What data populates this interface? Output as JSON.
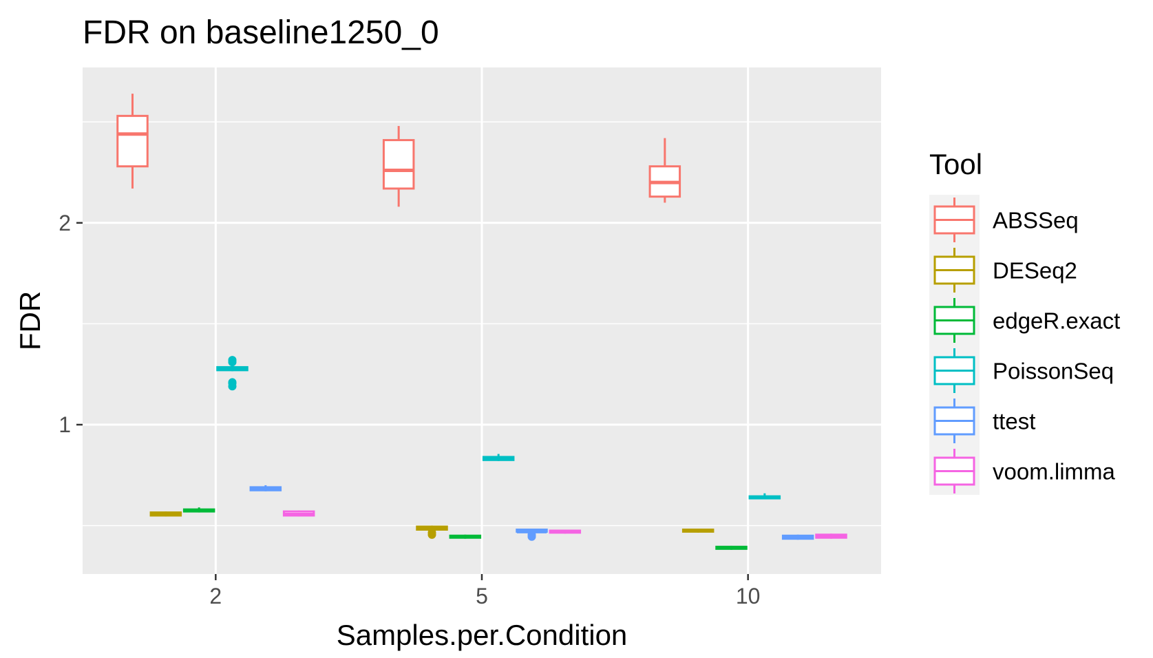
{
  "chart_data": {
    "type": "boxplot",
    "title": "FDR on baseline1250_0",
    "xlabel": "Samples.per.Condition",
    "ylabel": "FDR",
    "categories": [
      "2",
      "5",
      "10"
    ],
    "y_ticks": [
      1,
      2
    ],
    "y_tick_labels": [
      "1",
      "2"
    ],
    "ylim": [
      0.26,
      2.77
    ],
    "grid": true,
    "legend": {
      "title": "Tool",
      "position": "right"
    },
    "series": [
      {
        "name": "ABSSeq",
        "color": "#F8766D",
        "boxes": [
          {
            "min": 2.17,
            "q1": 2.28,
            "median": 2.44,
            "q3": 2.53,
            "max": 2.64,
            "outliers": []
          },
          {
            "min": 2.08,
            "q1": 2.17,
            "median": 2.26,
            "q3": 2.41,
            "max": 2.48,
            "outliers": []
          },
          {
            "min": 2.1,
            "q1": 2.13,
            "median": 2.2,
            "q3": 2.28,
            "max": 2.42,
            "outliers": []
          }
        ]
      },
      {
        "name": "DESeq2",
        "color": "#B79F00",
        "boxes": [
          {
            "min": 0.545,
            "q1": 0.55,
            "median": 0.555,
            "q3": 0.565,
            "max": 0.57,
            "outliers": []
          },
          {
            "min": 0.48,
            "q1": 0.48,
            "median": 0.485,
            "q3": 0.495,
            "max": 0.5,
            "outliers": [
              0.455,
              0.465
            ]
          },
          {
            "min": 0.465,
            "q1": 0.47,
            "median": 0.475,
            "q3": 0.48,
            "max": 0.485,
            "outliers": []
          }
        ]
      },
      {
        "name": "edgeR.exact",
        "color": "#00BA38",
        "boxes": [
          {
            "min": 0.565,
            "q1": 0.57,
            "median": 0.575,
            "q3": 0.58,
            "max": 0.59,
            "outliers": []
          },
          {
            "min": 0.435,
            "q1": 0.44,
            "median": 0.445,
            "q3": 0.45,
            "max": 0.455,
            "outliers": []
          },
          {
            "min": 0.38,
            "q1": 0.385,
            "median": 0.39,
            "q3": 0.395,
            "max": 0.4,
            "outliers": []
          }
        ]
      },
      {
        "name": "PoissonSeq",
        "color": "#00BFC4",
        "boxes": [
          {
            "min": 1.265,
            "q1": 1.27,
            "median": 1.275,
            "q3": 1.285,
            "max": 1.29,
            "outliers": [
              1.19,
              1.205,
              1.21,
              1.31,
              1.32
            ]
          },
          {
            "min": 0.82,
            "q1": 0.825,
            "median": 0.83,
            "q3": 0.84,
            "max": 0.855,
            "outliers": []
          },
          {
            "min": 0.63,
            "q1": 0.635,
            "median": 0.64,
            "q3": 0.645,
            "max": 0.66,
            "outliers": []
          }
        ]
      },
      {
        "name": "ttest",
        "color": "#619CFF",
        "boxes": [
          {
            "min": 0.67,
            "q1": 0.675,
            "median": 0.68,
            "q3": 0.69,
            "max": 0.7,
            "outliers": []
          },
          {
            "min": 0.465,
            "q1": 0.47,
            "median": 0.47,
            "q3": 0.48,
            "max": 0.485,
            "outliers": [
              0.445,
              0.455
            ]
          },
          {
            "min": 0.43,
            "q1": 0.435,
            "median": 0.44,
            "q3": 0.45,
            "max": 0.455,
            "outliers": []
          }
        ]
      },
      {
        "name": "voom.limma",
        "color": "#F564E3",
        "boxes": [
          {
            "min": 0.545,
            "q1": 0.55,
            "median": 0.555,
            "q3": 0.57,
            "max": 0.575,
            "outliers": []
          },
          {
            "min": 0.46,
            "q1": 0.465,
            "median": 0.47,
            "q3": 0.475,
            "max": 0.48,
            "outliers": []
          },
          {
            "min": 0.435,
            "q1": 0.44,
            "median": 0.445,
            "q3": 0.455,
            "max": 0.46,
            "outliers": []
          }
        ]
      }
    ]
  }
}
